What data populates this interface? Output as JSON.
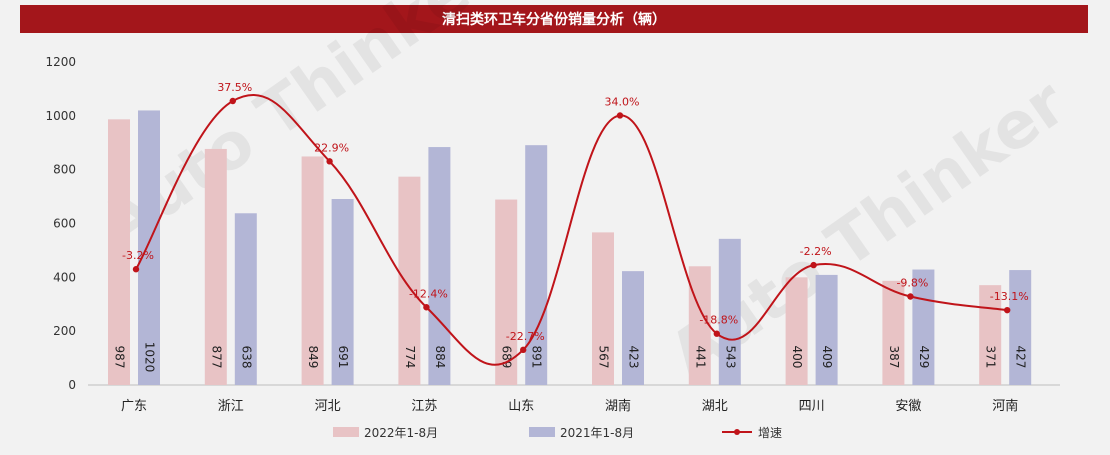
{
  "title": "清扫类环卫车分省份销量分析（辆）",
  "colors": {
    "title_bg": "#a3161b",
    "series1": "#e8c3c5",
    "series2": "#b3b6d6",
    "growth": "#c0141a"
  },
  "chart_data": {
    "type": "bar",
    "title": "清扫类环卫车分省份销量分析（辆）",
    "categories": [
      "广东",
      "浙江",
      "河北",
      "江苏",
      "山东",
      "湖南",
      "湖北",
      "四川",
      "安徽",
      "河南"
    ],
    "series": [
      {
        "name": "2022年1-8月",
        "values": [
          987,
          877,
          849,
          774,
          689,
          567,
          441,
          400,
          387,
          371
        ]
      },
      {
        "name": "2021年1-8月",
        "values": [
          1020,
          638,
          691,
          884,
          891,
          423,
          543,
          409,
          429,
          427
        ]
      }
    ],
    "line_series": {
      "name": "增速",
      "values": [
        -3.2,
        37.5,
        22.9,
        -12.4,
        -22.7,
        34.0,
        -18.8,
        -2.2,
        -9.8,
        -13.1
      ],
      "labels": [
        "-3.2%",
        "37.5%",
        "22.9%",
        "-12.4%",
        "-22.7%",
        "34.0%",
        "-18.8%",
        "-2.2%",
        "-9.8%",
        "-13.1%"
      ]
    },
    "y_ticks": [
      "0",
      "200",
      "400",
      "600",
      "800",
      "1000",
      "1200"
    ],
    "ylim": [
      0,
      1200
    ],
    "legend_position": "bottom",
    "grid": false
  }
}
